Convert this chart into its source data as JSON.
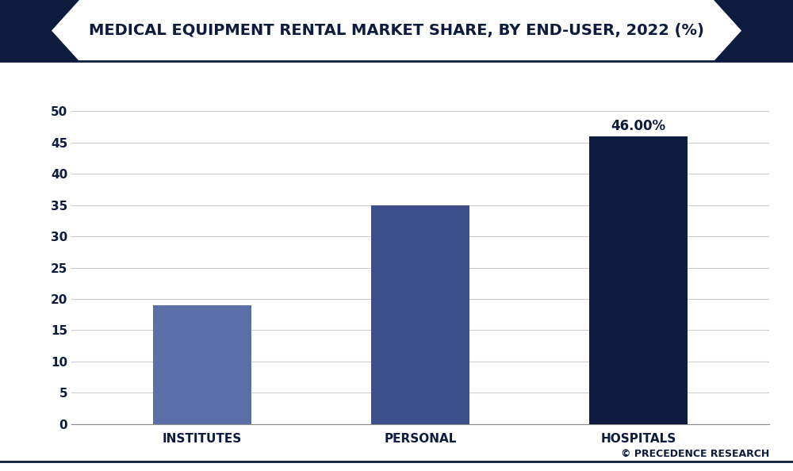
{
  "title": "MEDICAL EQUIPMENT RENTAL MARKET SHARE, BY END-USER, 2022 (%)",
  "categories": [
    "INSTITUTES",
    "PERSONAL",
    "HOSPITALS"
  ],
  "values": [
    19,
    35,
    46
  ],
  "bar_colors": [
    "#5b6ea8",
    "#3d4f8a",
    "#0d1b3e"
  ],
  "annotation_label": "46.00%",
  "annotation_bar_index": 2,
  "ylim": [
    0,
    55
  ],
  "yticks": [
    0,
    5,
    10,
    15,
    20,
    25,
    30,
    35,
    40,
    45,
    50
  ],
  "background_color": "#ffffff",
  "plot_bg_color": "#ffffff",
  "grid_color": "#cccccc",
  "title_color": "#0d1b3e",
  "tick_color": "#0d1b3e",
  "watermark": "© PRECEDENCE RESEARCH",
  "watermark_color": "#0d1b3e",
  "title_fontsize": 14,
  "tick_fontsize": 11,
  "bar_width": 0.45,
  "figsize": [
    10.0,
    5.94
  ],
  "dpi": 100,
  "header_bg_color": "#ffffff",
  "header_triangle_color": "#0d1b3e",
  "header_border_color": "#0d1b3e",
  "bottom_border_color": "#0d1b3e"
}
